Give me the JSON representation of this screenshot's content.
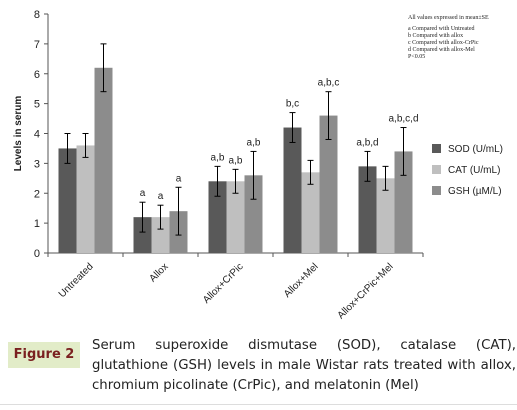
{
  "chart_data": {
    "type": "bar",
    "ylabel": "Levels in serum",
    "ylim": [
      0,
      8
    ],
    "yticks": [
      "0",
      "1",
      "2",
      "3",
      "4",
      "5",
      "6",
      "7",
      "8"
    ],
    "categories": [
      "Untreated",
      "Allox",
      "Allox+CrPic",
      "Allox+Mel",
      "Allox+CrPic+Mel"
    ],
    "series": [
      {
        "name": "SOD (U/mL)",
        "color": "#595959",
        "values": [
          3.5,
          1.2,
          2.4,
          4.2,
          2.9
        ],
        "errors": [
          0.5,
          0.5,
          0.5,
          0.5,
          0.5
        ],
        "labels": [
          "",
          "a",
          "a,b",
          "b,c",
          "a,b,d"
        ]
      },
      {
        "name": "CAT (U/mL)",
        "color": "#bfbfbf",
        "values": [
          3.6,
          1.2,
          2.4,
          2.7,
          2.5
        ],
        "errors": [
          0.4,
          0.4,
          0.4,
          0.4,
          0.4
        ],
        "labels": [
          "",
          "a",
          "a,b",
          "",
          ""
        ]
      },
      {
        "name": "GSH (µM/L)",
        "color": "#8c8c8c",
        "values": [
          6.2,
          1.4,
          2.6,
          4.6,
          3.4
        ],
        "errors": [
          0.8,
          0.8,
          0.8,
          0.8,
          0.8
        ],
        "labels": [
          "",
          "a",
          "a,b",
          "a,b,c",
          "a,b,c,d"
        ]
      }
    ],
    "legend": "right",
    "grid": false,
    "notes": [
      "All values expressed in mean±SE",
      "a Compared with Untreated",
      "b Compared with allox",
      "c Compared with allox-CrPic",
      "d Compared with allox-Mel",
      "P<0.05"
    ]
  },
  "caption": {
    "label": "Figure 2",
    "text": "Serum superoxide dismutase (SOD), catalase (CAT), glutathione (GSH) levels in male Wistar rats treated with allox, chromium picolinate (CrPic), and melatonin (Mel)"
  }
}
